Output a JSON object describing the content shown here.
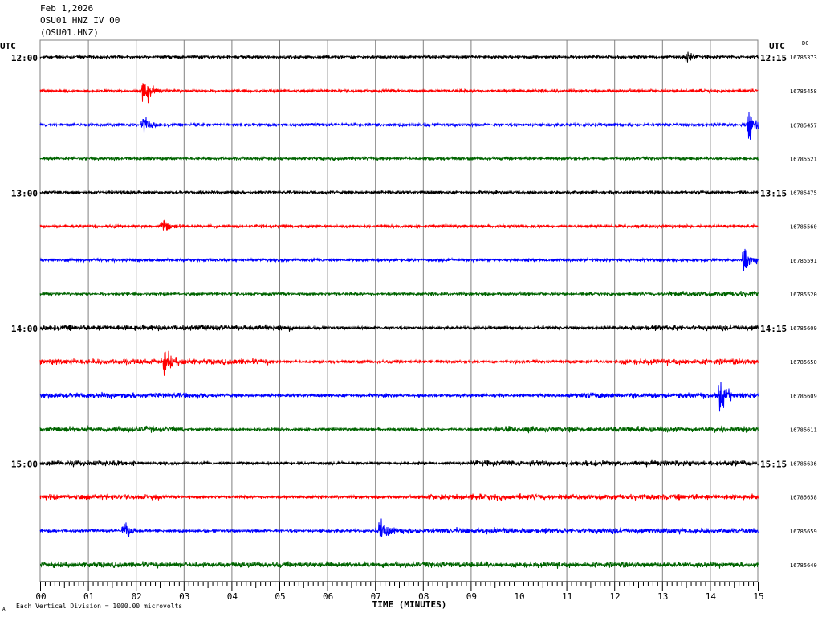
{
  "header": {
    "date": "Feb 1,2026",
    "station": "OSU01 HNZ IV 00",
    "channel": "(OSU01.HNZ)"
  },
  "labels": {
    "utc_left": "UTC",
    "utc_right": "UTC",
    "dc": "DC",
    "footnote": "Each Vertical Division = 1000.00 microvolts",
    "corner_mark": "A"
  },
  "colors": [
    "#000000",
    "#ff0000",
    "#0000ff",
    "#006400"
  ],
  "chart_data": {
    "type": "line",
    "title": "",
    "xlabel": "TIME (MINUTES)",
    "ylabel": "",
    "xlim": [
      0,
      15
    ],
    "x_ticks": [
      "00",
      "01",
      "02",
      "03",
      "04",
      "05",
      "06",
      "07",
      "08",
      "09",
      "10",
      "11",
      "12",
      "13",
      "14",
      "15"
    ],
    "grid": true,
    "left_time_labels": [
      "12:00",
      "13:00",
      "14:00",
      "15:00"
    ],
    "right_time_labels": [
      "12:15",
      "13:15",
      "14:15",
      "15:15"
    ],
    "traces": [
      {
        "dc": "16785373",
        "events": [
          {
            "minute": 13.5,
            "amp": 0.3
          }
        ],
        "loud": []
      },
      {
        "dc": "16785458",
        "events": [
          {
            "minute": 2.15,
            "amp": 1.0
          }
        ],
        "loud": []
      },
      {
        "dc": "16785457",
        "events": [
          {
            "minute": 2.15,
            "amp": 0.6
          },
          {
            "minute": 14.8,
            "amp": 1.2
          }
        ],
        "loud": []
      },
      {
        "dc": "16785521",
        "events": [],
        "loud": []
      },
      {
        "dc": "16785475",
        "events": [],
        "loud": []
      },
      {
        "dc": "16785560",
        "events": [
          {
            "minute": 2.55,
            "amp": 0.55
          }
        ],
        "loud": []
      },
      {
        "dc": "16785591",
        "events": [
          {
            "minute": 14.7,
            "amp": 1.0
          }
        ],
        "loud": []
      },
      {
        "dc": "16785520",
        "events": [],
        "loud": [
          [
            13.0,
            15.0
          ]
        ]
      },
      {
        "dc": "16785609",
        "events": [],
        "loud": [
          [
            0.0,
            5.3
          ],
          [
            12.2,
            15.0
          ]
        ]
      },
      {
        "dc": "16785650",
        "events": [
          {
            "minute": 2.6,
            "amp": 0.8
          }
        ],
        "loud": [
          [
            0.0,
            4.8
          ],
          [
            12.0,
            15.0
          ]
        ]
      },
      {
        "dc": "16785609",
        "events": [
          {
            "minute": 14.2,
            "amp": 0.9
          }
        ],
        "loud": [
          [
            0.0,
            3.5
          ],
          [
            11.0,
            15.0
          ]
        ]
      },
      {
        "dc": "16785611",
        "events": [],
        "loud": [
          [
            0.0,
            3.0
          ],
          [
            9.5,
            15.0
          ]
        ]
      },
      {
        "dc": "16785636",
        "events": [],
        "loud": [
          [
            0.0,
            2.0
          ],
          [
            9.0,
            15.0
          ]
        ]
      },
      {
        "dc": "16785658",
        "events": [],
        "loud": [
          [
            0.0,
            2.5
          ],
          [
            8.0,
            15.0
          ]
        ]
      },
      {
        "dc": "16785659",
        "events": [
          {
            "minute": 1.75,
            "amp": 0.7
          },
          {
            "minute": 7.1,
            "amp": 0.6
          }
        ],
        "loud": [
          [
            7.0,
            15.0
          ]
        ]
      },
      {
        "dc": "16785640",
        "events": [],
        "loud": [
          [
            0.0,
            15.0
          ]
        ]
      }
    ]
  }
}
